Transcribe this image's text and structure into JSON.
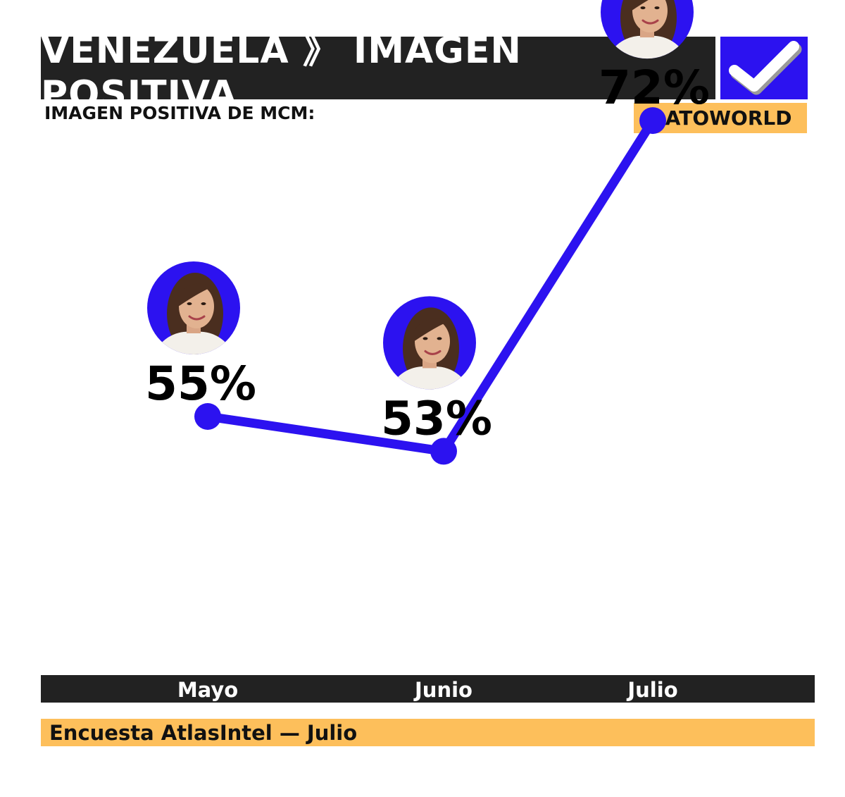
{
  "header": {
    "title": "VENEZUELA 》 IMAGEN POSITIVA",
    "check_icon": "checkmark-icon"
  },
  "subtitle": "IMAGEN POSITIVA DE MCM:",
  "brand": "DATOWORLD",
  "source": "Encuesta AtlasIntel — Julio",
  "colors": {
    "header_bg": "#222222",
    "accent_blue": "#2c12f0",
    "brand_orange": "#fdbf5b"
  },
  "chart_data": {
    "type": "line",
    "categories": [
      "Mayo",
      "Junio",
      "Julio"
    ],
    "values": [
      55,
      53,
      72
    ],
    "value_labels": [
      "55%",
      "53%",
      "72%"
    ],
    "series": [
      {
        "values": [
          55,
          53,
          72
        ]
      }
    ],
    "markers": "portrait-avatar-icon",
    "title": "IMAGEN POSITIVA DE MCM:",
    "xlabel": "",
    "ylabel": ""
  }
}
